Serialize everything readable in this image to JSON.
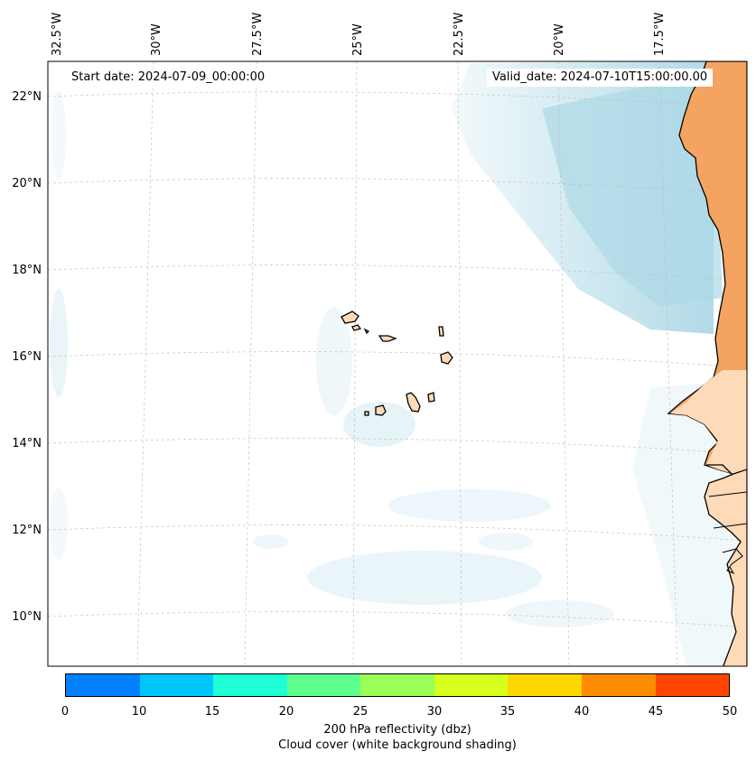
{
  "map": {
    "start_date_label": "Start date: 2024-07-09_00:00:00",
    "valid_date_label": "Valid_date: 2024-07-10T15:00:00.00",
    "lon_labels": [
      "32.5°W",
      "30°W",
      "27.5°W",
      "25°W",
      "22.5°W",
      "20°W",
      "17.5°W"
    ],
    "lat_labels": [
      "22°N",
      "20°N",
      "18°N",
      "16°N",
      "14°N",
      "12°N",
      "10°N"
    ],
    "colors": {
      "land_africa": "#f4a460",
      "land_islands": "#ffdab9",
      "cloud": "#add8e6",
      "coastline": "#000000",
      "gridline": "#bbbbbb"
    }
  },
  "colorbar": {
    "ticks": [
      "0",
      "10",
      "15",
      "20",
      "25",
      "30",
      "35",
      "40",
      "45",
      "50"
    ],
    "colors": [
      "#0080ff",
      "#00c5ff",
      "#1effd6",
      "#5fff8d",
      "#9aff57",
      "#d6ff1e",
      "#ffd700",
      "#ff8c00",
      "#ff4500"
    ],
    "label_line1": "200 hPa reflectivity (dbz)",
    "label_line2": "Cloud cover (white background shading)"
  }
}
